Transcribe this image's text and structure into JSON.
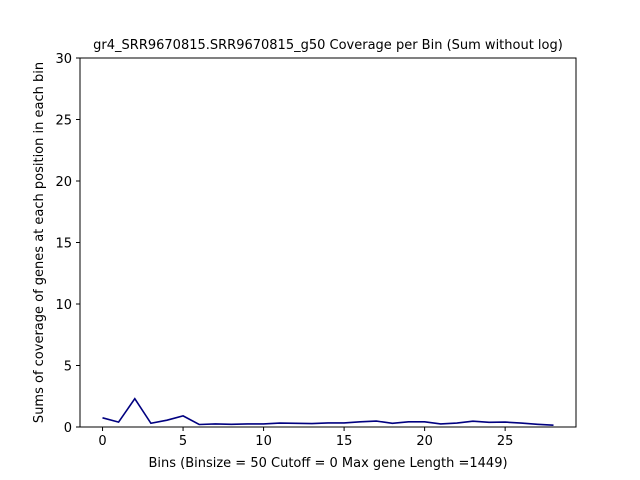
{
  "chart_data": {
    "type": "line",
    "title": "gr4_SRR9670815.SRR9670815_g50 Coverage per Bin (Sum without log)",
    "xlabel": "Bins  (Binsize = 50 Cutoff = 0 Max gene Length =1449)",
    "ylabel": "Sums of coverage of genes at each position in each bin",
    "xlim": [
      -1.4,
      29.4
    ],
    "ylim": [
      0,
      30
    ],
    "xticks": [
      0,
      5,
      10,
      15,
      20,
      25
    ],
    "yticks": [
      0,
      5,
      10,
      15,
      20,
      25,
      30
    ],
    "grid": false,
    "line_color": "#000080",
    "series": [
      {
        "x": [
          0,
          1,
          2,
          3,
          4,
          5,
          6,
          7,
          8,
          9,
          10,
          11,
          12,
          13,
          14,
          15,
          16,
          17,
          18,
          19,
          20,
          21,
          22,
          23,
          24,
          25,
          26,
          27,
          28
        ],
        "values": [
          0.75,
          0.4,
          2.3,
          0.3,
          0.55,
          0.9,
          0.2,
          0.25,
          0.22,
          0.25,
          0.25,
          0.32,
          0.3,
          0.28,
          0.33,
          0.33,
          0.42,
          0.48,
          0.3,
          0.42,
          0.42,
          0.25,
          0.32,
          0.47,
          0.38,
          0.4,
          0.32,
          0.22,
          0.15
        ]
      }
    ]
  }
}
